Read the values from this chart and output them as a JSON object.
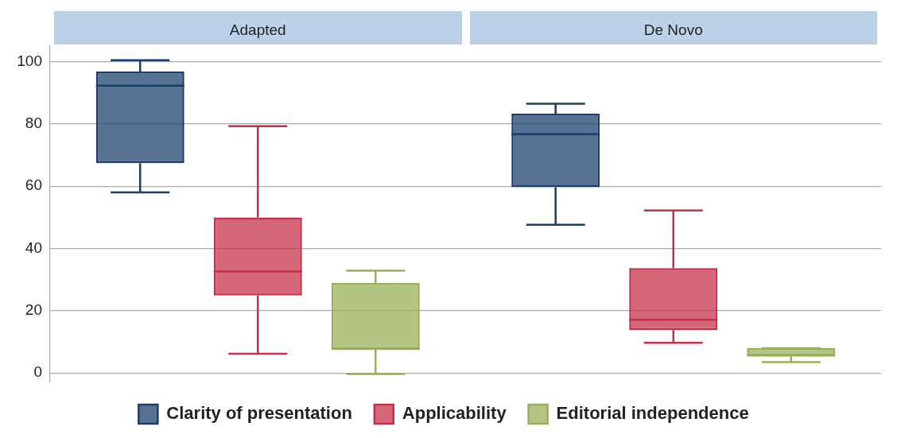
{
  "chart_data": {
    "type": "box",
    "categories": [
      "Adapted",
      "De Novo"
    ],
    "ylim": [
      -3,
      105
    ],
    "yticks": [
      0,
      20,
      40,
      60,
      80,
      100
    ],
    "grid": "y",
    "legend": "bottom",
    "series": [
      {
        "name": "Clarity of presentation",
        "color": "#1a3d6b",
        "boxes": [
          {
            "low": 58,
            "q1": 67.4,
            "median": 92.3,
            "q3": 96.8,
            "high": 100.5
          },
          {
            "low": 47.6,
            "q1": 59.7,
            "median": 76.7,
            "q3": 83.3,
            "high": 86.5
          }
        ]
      },
      {
        "name": "Applicability",
        "color": "#c4304a",
        "boxes": [
          {
            "low": 6.2,
            "q1": 24.9,
            "median": 32.6,
            "q3": 50,
            "high": 79.3
          },
          {
            "low": 9.7,
            "q1": 13.8,
            "median": 17.1,
            "q3": 33.7,
            "high": 52.2
          }
        ]
      },
      {
        "name": "Editorial independence",
        "color": "#97b054",
        "boxes": [
          {
            "low": -0.3,
            "q1": 7.7,
            "median": 7.7,
            "q3": 28.9,
            "high": 32.9
          },
          {
            "low": 3.5,
            "q1": 5.6,
            "median": 5.6,
            "q3": 8,
            "high": 8
          }
        ]
      }
    ]
  }
}
